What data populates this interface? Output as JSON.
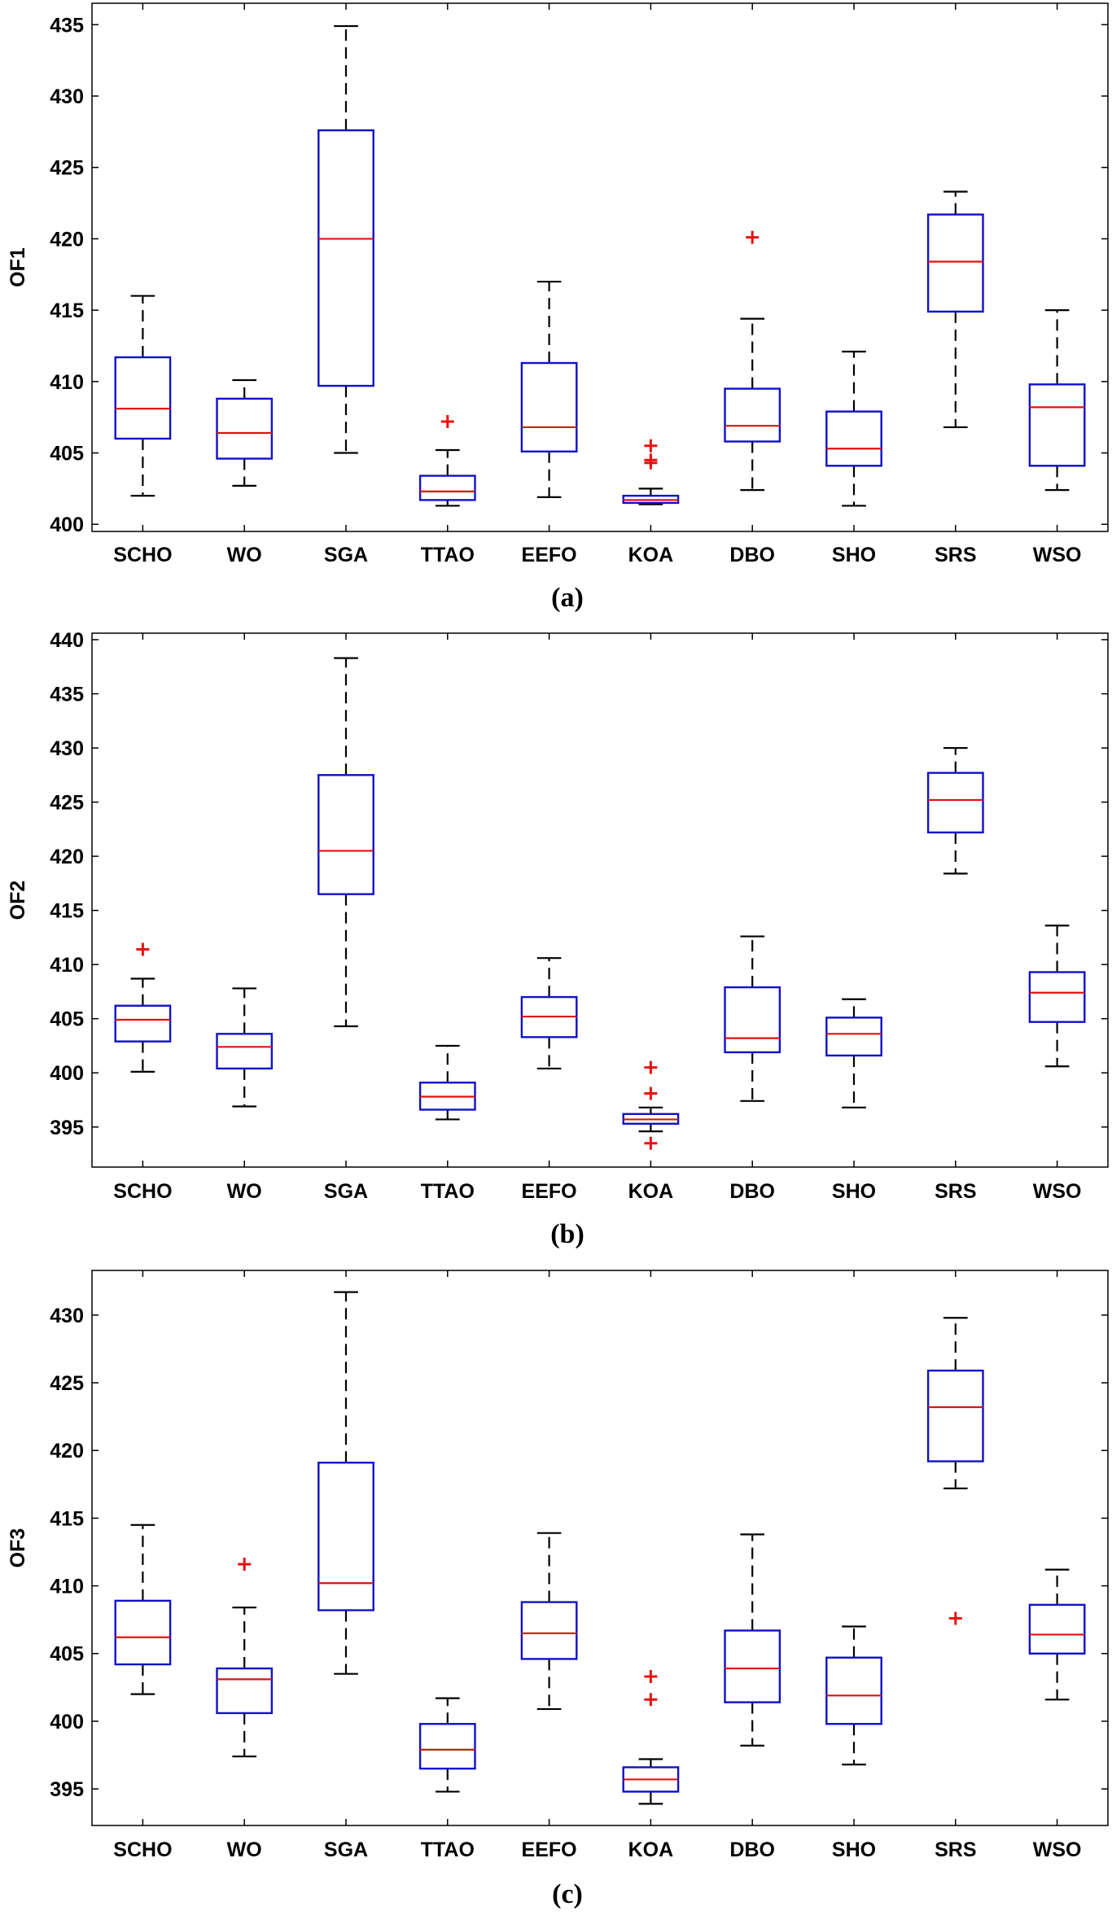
{
  "colors": {
    "box": "#1010c8",
    "median": "#e01010",
    "whisker": "#000000",
    "outlier": "#e81010",
    "frame": "#000000"
  },
  "chart_data": [
    {
      "type": "box",
      "ylabel": "OF1",
      "caption": "(a)",
      "ylim": [
        399.5,
        436.5
      ],
      "yticks": [
        400,
        405,
        410,
        415,
        420,
        425,
        430,
        435
      ],
      "categories": [
        "SCHO",
        "WO",
        "SGA",
        "TTAO",
        "EEFO",
        "KOA",
        "DBO",
        "SHO",
        "SRS",
        "WSO"
      ],
      "boxes": [
        {
          "min": 402.0,
          "q1": 406.0,
          "median": 408.1,
          "q3": 411.7,
          "max": 416.0,
          "outliers": []
        },
        {
          "min": 402.7,
          "q1": 404.6,
          "median": 406.4,
          "q3": 408.8,
          "max": 410.1,
          "outliers": []
        },
        {
          "min": 405.0,
          "q1": 409.7,
          "median": 420.0,
          "q3": 427.6,
          "max": 434.9,
          "outliers": []
        },
        {
          "min": 401.3,
          "q1": 401.7,
          "median": 402.3,
          "q3": 403.4,
          "max": 405.2,
          "outliers": [
            407.2
          ]
        },
        {
          "min": 401.9,
          "q1": 405.1,
          "median": 406.8,
          "q3": 411.3,
          "max": 417.0,
          "outliers": []
        },
        {
          "min": 401.4,
          "q1": 401.5,
          "median": 401.7,
          "q3": 402.0,
          "max": 402.5,
          "outliers": [
            404.3,
            404.5,
            405.5
          ]
        },
        {
          "min": 402.4,
          "q1": 405.8,
          "median": 406.9,
          "q3": 409.5,
          "max": 414.4,
          "outliers": [
            420.1
          ]
        },
        {
          "min": 401.3,
          "q1": 404.1,
          "median": 405.3,
          "q3": 407.9,
          "max": 412.1,
          "outliers": []
        },
        {
          "min": 406.8,
          "q1": 414.9,
          "median": 418.4,
          "q3": 421.7,
          "max": 423.3,
          "outliers": []
        },
        {
          "min": 402.4,
          "q1": 404.1,
          "median": 408.2,
          "q3": 409.8,
          "max": 415.0,
          "outliers": []
        }
      ]
    },
    {
      "type": "box",
      "ylabel": "OF2",
      "caption": "(b)",
      "ylim": [
        391.3,
        440.6
      ],
      "yticks": [
        395,
        400,
        405,
        410,
        415,
        420,
        425,
        430,
        435,
        440
      ],
      "categories": [
        "SCHO",
        "WO",
        "SGA",
        "TTAO",
        "EEFO",
        "KOA",
        "DBO",
        "SHO",
        "SRS",
        "WSO"
      ],
      "boxes": [
        {
          "min": 400.1,
          "q1": 402.9,
          "median": 404.9,
          "q3": 406.2,
          "max": 408.7,
          "outliers": [
            411.4
          ]
        },
        {
          "min": 396.9,
          "q1": 400.4,
          "median": 402.4,
          "q3": 403.6,
          "max": 407.8,
          "outliers": []
        },
        {
          "min": 404.3,
          "q1": 416.5,
          "median": 420.5,
          "q3": 427.5,
          "max": 438.3,
          "outliers": []
        },
        {
          "min": 395.7,
          "q1": 396.6,
          "median": 397.8,
          "q3": 399.1,
          "max": 402.5,
          "outliers": []
        },
        {
          "min": 400.4,
          "q1": 403.3,
          "median": 405.2,
          "q3": 407.0,
          "max": 410.6,
          "outliers": []
        },
        {
          "min": 394.6,
          "q1": 395.3,
          "median": 395.7,
          "q3": 396.2,
          "max": 396.8,
          "outliers": [
            393.5,
            398.1,
            400.5
          ]
        },
        {
          "min": 397.4,
          "q1": 401.9,
          "median": 403.2,
          "q3": 407.9,
          "max": 412.6,
          "outliers": []
        },
        {
          "min": 396.8,
          "q1": 401.6,
          "median": 403.6,
          "q3": 405.1,
          "max": 406.8,
          "outliers": []
        },
        {
          "min": 418.4,
          "q1": 422.2,
          "median": 425.2,
          "q3": 427.7,
          "max": 430.0,
          "outliers": []
        },
        {
          "min": 400.6,
          "q1": 404.7,
          "median": 407.4,
          "q3": 409.3,
          "max": 413.6,
          "outliers": []
        }
      ]
    },
    {
      "type": "box",
      "ylabel": "OF3",
      "caption": "(c)",
      "ylim": [
        392.3,
        433.3
      ],
      "yticks": [
        395,
        400,
        405,
        410,
        415,
        420,
        425,
        430
      ],
      "categories": [
        "SCHO",
        "WO",
        "SGA",
        "TTAO",
        "EEFO",
        "KOA",
        "DBO",
        "SHO",
        "SRS",
        "WSO"
      ],
      "boxes": [
        {
          "min": 402.0,
          "q1": 404.2,
          "median": 406.2,
          "q3": 408.9,
          "max": 414.5,
          "outliers": []
        },
        {
          "min": 397.4,
          "q1": 400.6,
          "median": 403.1,
          "q3": 403.9,
          "max": 408.4,
          "outliers": [
            411.6
          ]
        },
        {
          "min": 403.5,
          "q1": 408.2,
          "median": 410.2,
          "q3": 419.1,
          "max": 431.7,
          "outliers": []
        },
        {
          "min": 394.8,
          "q1": 396.5,
          "median": 397.9,
          "q3": 399.8,
          "max": 401.7,
          "outliers": []
        },
        {
          "min": 400.9,
          "q1": 404.6,
          "median": 406.5,
          "q3": 408.8,
          "max": 413.9,
          "outliers": []
        },
        {
          "min": 393.9,
          "q1": 394.8,
          "median": 395.7,
          "q3": 396.6,
          "max": 397.2,
          "outliers": [
            401.6,
            403.3
          ]
        },
        {
          "min": 398.2,
          "q1": 401.4,
          "median": 403.9,
          "q3": 406.7,
          "max": 413.8,
          "outliers": []
        },
        {
          "min": 396.8,
          "q1": 399.8,
          "median": 401.9,
          "q3": 404.7,
          "max": 407.0,
          "outliers": []
        },
        {
          "min": 417.2,
          "q1": 419.2,
          "median": 423.2,
          "q3": 425.9,
          "max": 429.8,
          "outliers": [
            407.6
          ]
        },
        {
          "min": 401.6,
          "q1": 405.0,
          "median": 406.4,
          "q3": 408.6,
          "max": 411.2,
          "outliers": []
        }
      ]
    }
  ]
}
